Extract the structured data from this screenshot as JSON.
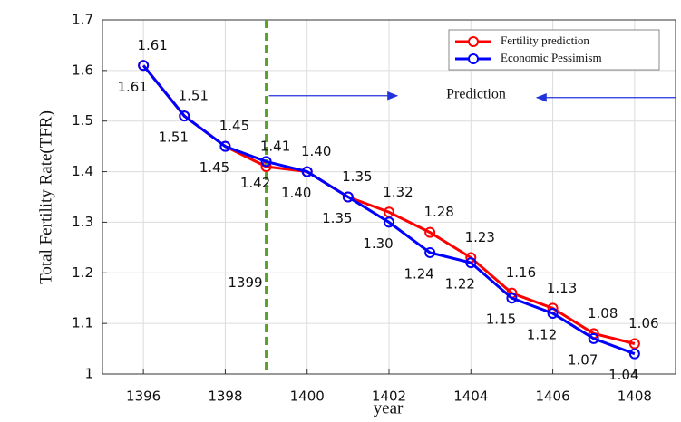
{
  "chart_data": {
    "type": "line",
    "xlabel": "year",
    "ylabel": "Total Fertility Rate(TFR)",
    "x": [
      1396,
      1397,
      1398,
      1399,
      1400,
      1401,
      1402,
      1403,
      1404,
      1405,
      1406,
      1407,
      1408
    ],
    "series": [
      {
        "name": "Fertility prediction",
        "color": "#ff0000",
        "values": [
          1.61,
          1.51,
          1.45,
          1.41,
          1.4,
          1.35,
          1.32,
          1.28,
          1.23,
          1.16,
          1.13,
          1.08,
          1.06
        ],
        "value_labels": [
          "1.61",
          "1.51",
          "1.45",
          "1.41",
          "1.40",
          "1.35",
          "1.32",
          "1.28",
          "1.23",
          "1.16",
          "1.13",
          "1.08",
          "1.06"
        ]
      },
      {
        "name": "Economic Pessimism",
        "color": "#0000ff",
        "values": [
          1.61,
          1.51,
          1.45,
          1.42,
          1.4,
          1.35,
          1.3,
          1.24,
          1.22,
          1.15,
          1.12,
          1.07,
          1.04
        ],
        "value_labels": [
          "1.61",
          "1.51",
          "1.45",
          "1.42",
          "1.40",
          "1.35",
          "1.30",
          "1.24",
          "1.22",
          "1.15",
          "1.12",
          "1.07",
          "1.04"
        ]
      }
    ],
    "xlim": [
      1395,
      1409
    ],
    "xticks": [
      1396,
      1398,
      1400,
      1402,
      1404,
      1406,
      1408
    ],
    "ylim": [
      1,
      1.7
    ],
    "yticks": [
      1,
      1.1,
      1.2,
      1.3,
      1.4,
      1.5,
      1.6,
      1.7
    ],
    "grid": true,
    "legend": "upper right",
    "vline": {
      "value": 1399,
      "label": "1399",
      "color": "#5aa02c"
    },
    "annotation": "Prediction"
  }
}
